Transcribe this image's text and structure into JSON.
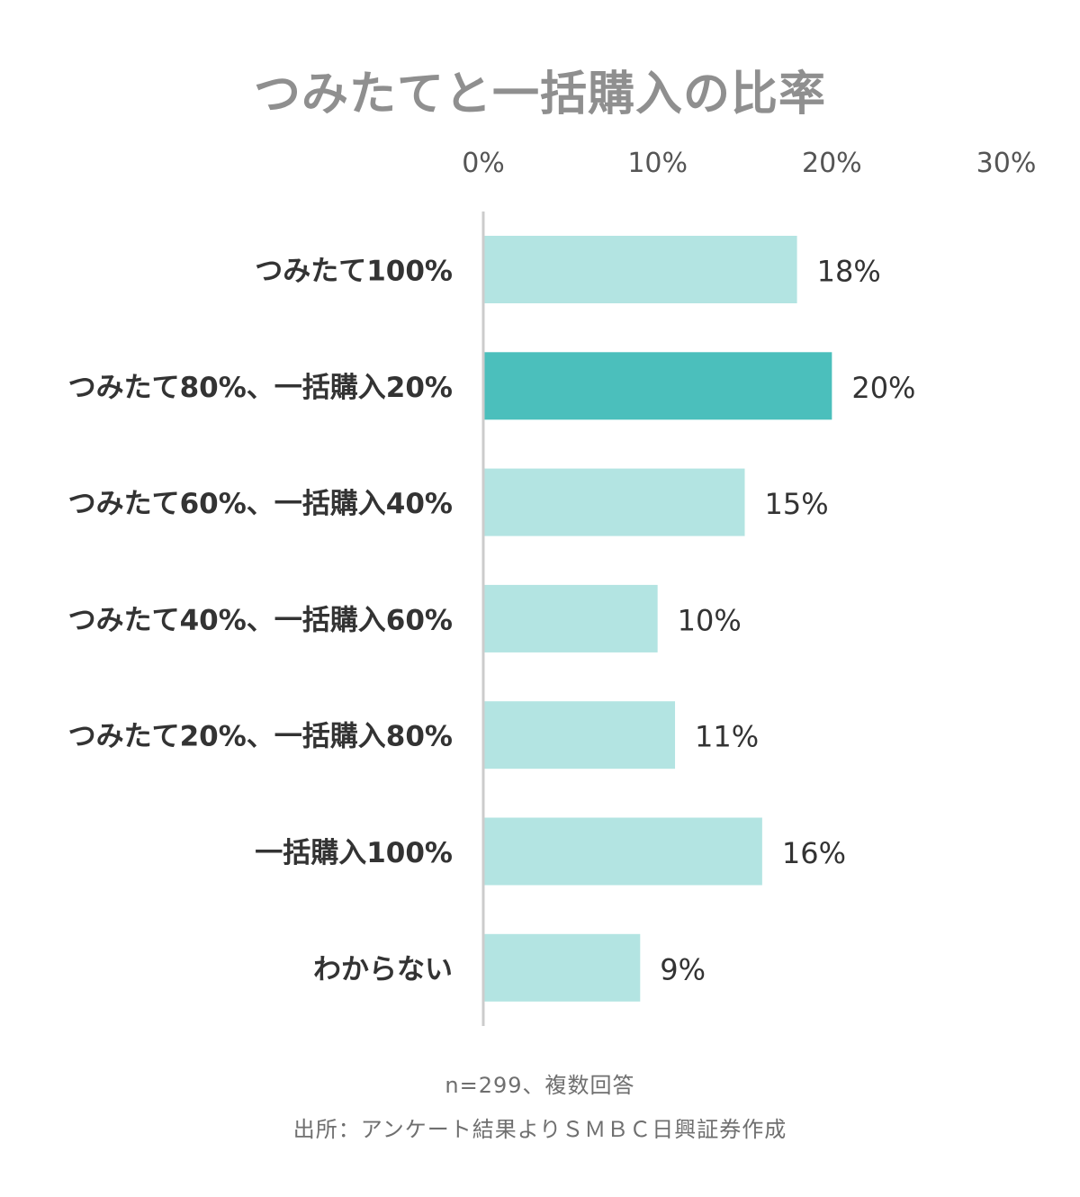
{
  "chart_data": {
    "type": "bar",
    "orientation": "horizontal",
    "title": "つみたてと一括購入の比率",
    "categories": [
      "つみたて100%",
      "つみたて80%、一括購入20%",
      "つみたて60%、一括購入40%",
      "つみたて40%、一括購入60%",
      "つみたて20%、一括購入80%",
      "一括購入100%",
      "わからない"
    ],
    "values": [
      18,
      20,
      15,
      10,
      11,
      16,
      9
    ],
    "value_labels": [
      "18%",
      "20%",
      "15%",
      "10%",
      "11%",
      "16%",
      "9%"
    ],
    "xlim": [
      0,
      30
    ],
    "xticks": [
      0,
      10,
      20,
      30
    ],
    "xtick_labels": [
      "0%",
      "10%",
      "20%",
      "30%"
    ],
    "axis_position": "top",
    "grid": false,
    "legend": "none",
    "highlight_index": 1,
    "colors": {
      "bar": "#b3e4e2",
      "highlight": "#4bbfbc",
      "axis": "#cccccc",
      "title": "#8f8f8f",
      "label": "#333333",
      "tick": "#555555",
      "note": "#6f6f6f"
    }
  },
  "notes": {
    "sample": "n=299、複数回答",
    "source": "出所：アンケート結果よりＳＭＢＣ日興証券作成"
  }
}
